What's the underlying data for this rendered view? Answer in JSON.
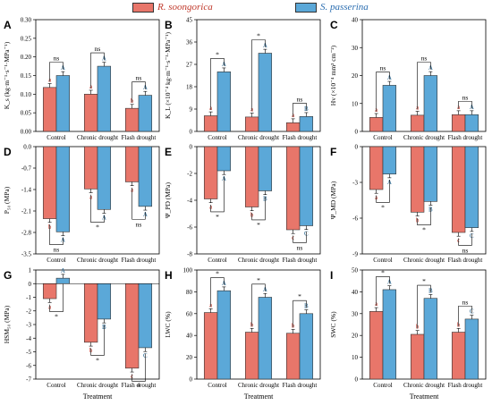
{
  "legend": {
    "s1_name": "R. soongorica",
    "s2_name": "S. passerina",
    "s1_color": "#E8766A",
    "s2_color": "#5BA8D8"
  },
  "chart_data": [
    {
      "type": "bar",
      "panel": "A",
      "ylabel": "K_s (kg·m⁻¹·s⁻¹·MPa⁻¹)",
      "ylim": [
        0,
        0.3
      ],
      "yticks": [
        0.0,
        0.05,
        0.1,
        0.15,
        0.2,
        0.25,
        0.3
      ],
      "tick_labels": [
        "0.00",
        "0.05",
        "0.10",
        "0.15",
        "0.20",
        "0.25",
        "0.30"
      ],
      "axis_top": true,
      "categories": [
        "Control",
        "Chronic drought",
        "Flash drought"
      ],
      "series": [
        {
          "name": "R. soongorica",
          "values": [
            0.118,
            0.1,
            0.062
          ]
        },
        {
          "name": "S. passerina",
          "values": [
            0.15,
            0.175,
            0.097
          ]
        }
      ],
      "letters1": [
        "a",
        "a",
        "b"
      ],
      "letters2": [
        "A",
        "A",
        "A"
      ],
      "sig": [
        "ns",
        "ns",
        "ns"
      ],
      "xlabel": ""
    },
    {
      "type": "bar",
      "panel": "B",
      "ylabel": "K_L (×10⁻⁴ kg·m⁻¹·s⁻¹·MPa⁻¹)",
      "ylim": [
        0,
        45
      ],
      "yticks": [
        0,
        9,
        18,
        27,
        36,
        45
      ],
      "tick_labels": [
        "0",
        "9",
        "18",
        "27",
        "36",
        "45"
      ],
      "axis_top": true,
      "categories": [
        "Control",
        "Chronic drought",
        "Flash drought"
      ],
      "series": [
        {
          "name": "R. soongorica",
          "values": [
            6.3,
            5.8,
            3.5
          ]
        },
        {
          "name": "S. passerina",
          "values": [
            24.0,
            31.5,
            6.0
          ]
        }
      ],
      "letters1": [
        "a",
        "a",
        "a"
      ],
      "letters2": [
        "A",
        "A",
        "B"
      ],
      "sig": [
        "*",
        "*",
        "ns"
      ],
      "xlabel": ""
    },
    {
      "type": "bar",
      "panel": "C",
      "ylabel": "Hv (×10⁻⁴ mm² cm⁻²)",
      "ylim": [
        0,
        40
      ],
      "yticks": [
        0,
        10,
        20,
        30,
        40
      ],
      "tick_labels": [
        "0",
        "10",
        "20",
        "30",
        "40"
      ],
      "axis_top": true,
      "categories": [
        "Control",
        "Chronic drought",
        "Flash drought"
      ],
      "series": [
        {
          "name": "R. soongorica",
          "values": [
            5.0,
            5.8,
            6.0
          ]
        },
        {
          "name": "S. passerina",
          "values": [
            16.5,
            20.0,
            6.0
          ]
        }
      ],
      "letters1": [
        "a",
        "a",
        "a"
      ],
      "letters2": [
        "A",
        "A",
        "A"
      ],
      "sig": [
        "ns",
        "ns",
        "ns"
      ],
      "xlabel": ""
    },
    {
      "type": "bar",
      "panel": "D",
      "ylabel": "P₅₀ (MPa)",
      "ylim": [
        -3.5,
        0
      ],
      "yticks": [
        0,
        -0.7,
        -1.4,
        -2.1,
        -2.8,
        -3.5
      ],
      "tick_labels": [
        "0.0",
        "-0.7",
        "-1.4",
        "-2.1",
        "-2.8",
        "-3.5"
      ],
      "axis_top": false,
      "categories": [
        "Control",
        "Chronic drought",
        "Flash drought"
      ],
      "series": [
        {
          "name": "R. soongorica",
          "values": [
            -2.35,
            -1.38,
            -1.15
          ]
        },
        {
          "name": "S. passerina",
          "values": [
            -2.78,
            -2.05,
            -1.95
          ]
        }
      ],
      "letters1": [
        "b",
        "a",
        "a"
      ],
      "letters2": [
        "A",
        "A",
        "A"
      ],
      "sig": [
        "ns",
        "*",
        "ns"
      ],
      "xlabel": ""
    },
    {
      "type": "bar",
      "panel": "E",
      "ylabel": "Ψ_PD (MPa)",
      "ylim": [
        -8,
        0
      ],
      "yticks": [
        0,
        -2,
        -4,
        -6,
        -8
      ],
      "tick_labels": [
        "0",
        "-2",
        "-4",
        "-6",
        "-8"
      ],
      "axis_top": false,
      "categories": [
        "Control",
        "Chronic drought",
        "Flash drought"
      ],
      "series": [
        {
          "name": "R. soongorica",
          "values": [
            -3.9,
            -4.5,
            -6.2
          ]
        },
        {
          "name": "S. passerina",
          "values": [
            -1.8,
            -3.3,
            -5.9
          ]
        }
      ],
      "letters1": [
        "a",
        "b",
        "c"
      ],
      "letters2": [
        "A",
        "B",
        "C"
      ],
      "sig": [
        "*",
        "*",
        "ns"
      ],
      "xlabel": ""
    },
    {
      "type": "bar",
      "panel": "F",
      "ylabel": "Ψ_MD (MPa)",
      "ylim": [
        -9,
        0
      ],
      "yticks": [
        0,
        -3,
        -6,
        -9
      ],
      "tick_labels": [
        "0",
        "-3",
        "-6",
        "-9"
      ],
      "axis_top": false,
      "categories": [
        "Control",
        "Chronic drought",
        "Flash drought"
      ],
      "series": [
        {
          "name": "R. soongorica",
          "values": [
            -3.6,
            -5.5,
            -7.2
          ]
        },
        {
          "name": "S. passerina",
          "values": [
            -2.3,
            -4.6,
            -6.8
          ]
        }
      ],
      "letters1": [
        "a",
        "b",
        "c"
      ],
      "letters2": [
        "A",
        "B",
        "C"
      ],
      "sig": [
        "*",
        "*",
        "ns"
      ],
      "xlabel": ""
    },
    {
      "type": "bar",
      "panel": "G",
      "ylabel": "HSM₅₀ (MPa)",
      "ylim": [
        -7,
        1
      ],
      "yticks": [
        1,
        0,
        -1,
        -2,
        -3,
        -4,
        -5,
        -6,
        -7
      ],
      "tick_labels": [
        "1",
        "0",
        "-1",
        "-2",
        "-3",
        "-4",
        "-5",
        "-6",
        "-7"
      ],
      "axis_top": false,
      "categories": [
        "Control",
        "Chronic drought",
        "Flash drought"
      ],
      "series": [
        {
          "name": "R. soongorica",
          "values": [
            -1.1,
            -4.3,
            -6.2
          ]
        },
        {
          "name": "S. passerina",
          "values": [
            0.4,
            -2.6,
            -4.7
          ]
        }
      ],
      "letters1": [
        "a",
        "b",
        "c"
      ],
      "letters2": [
        "A",
        "B",
        "C"
      ],
      "sig": [
        "*",
        "*",
        "*"
      ],
      "xlabel": "Treatment"
    },
    {
      "type": "bar",
      "panel": "H",
      "ylabel": "LWC (%)",
      "ylim": [
        0,
        100
      ],
      "yticks": [
        0,
        20,
        40,
        60,
        80,
        100
      ],
      "tick_labels": [
        "0",
        "20",
        "40",
        "60",
        "80",
        "100"
      ],
      "axis_top": true,
      "categories": [
        "Control",
        "Chronic drought",
        "Flash drought"
      ],
      "series": [
        {
          "name": "R. soongorica",
          "values": [
            61,
            43,
            42
          ]
        },
        {
          "name": "S. passerina",
          "values": [
            81,
            75,
            60
          ]
        }
      ],
      "letters1": [
        "a",
        "b",
        "b"
      ],
      "letters2": [
        "A",
        "A",
        "B"
      ],
      "sig": [
        "*",
        "*",
        "*"
      ],
      "xlabel": "Treatment"
    },
    {
      "type": "bar",
      "panel": "I",
      "ylabel": "SWC (%)",
      "ylim": [
        0,
        50
      ],
      "yticks": [
        0,
        10,
        20,
        30,
        40,
        50
      ],
      "tick_labels": [
        "0",
        "10",
        "20",
        "30",
        "40",
        "50"
      ],
      "axis_top": true,
      "categories": [
        "Control",
        "Chronic drought",
        "Flash drought"
      ],
      "series": [
        {
          "name": "R. soongorica",
          "values": [
            31,
            20.5,
            21.5
          ]
        },
        {
          "name": "S. passerina",
          "values": [
            41,
            37,
            27.5
          ]
        }
      ],
      "letters1": [
        "a",
        "b",
        "b"
      ],
      "letters2": [
        "A",
        "B",
        "C"
      ],
      "sig": [
        "*",
        "*",
        "ns"
      ],
      "xlabel": "Treatment"
    }
  ]
}
